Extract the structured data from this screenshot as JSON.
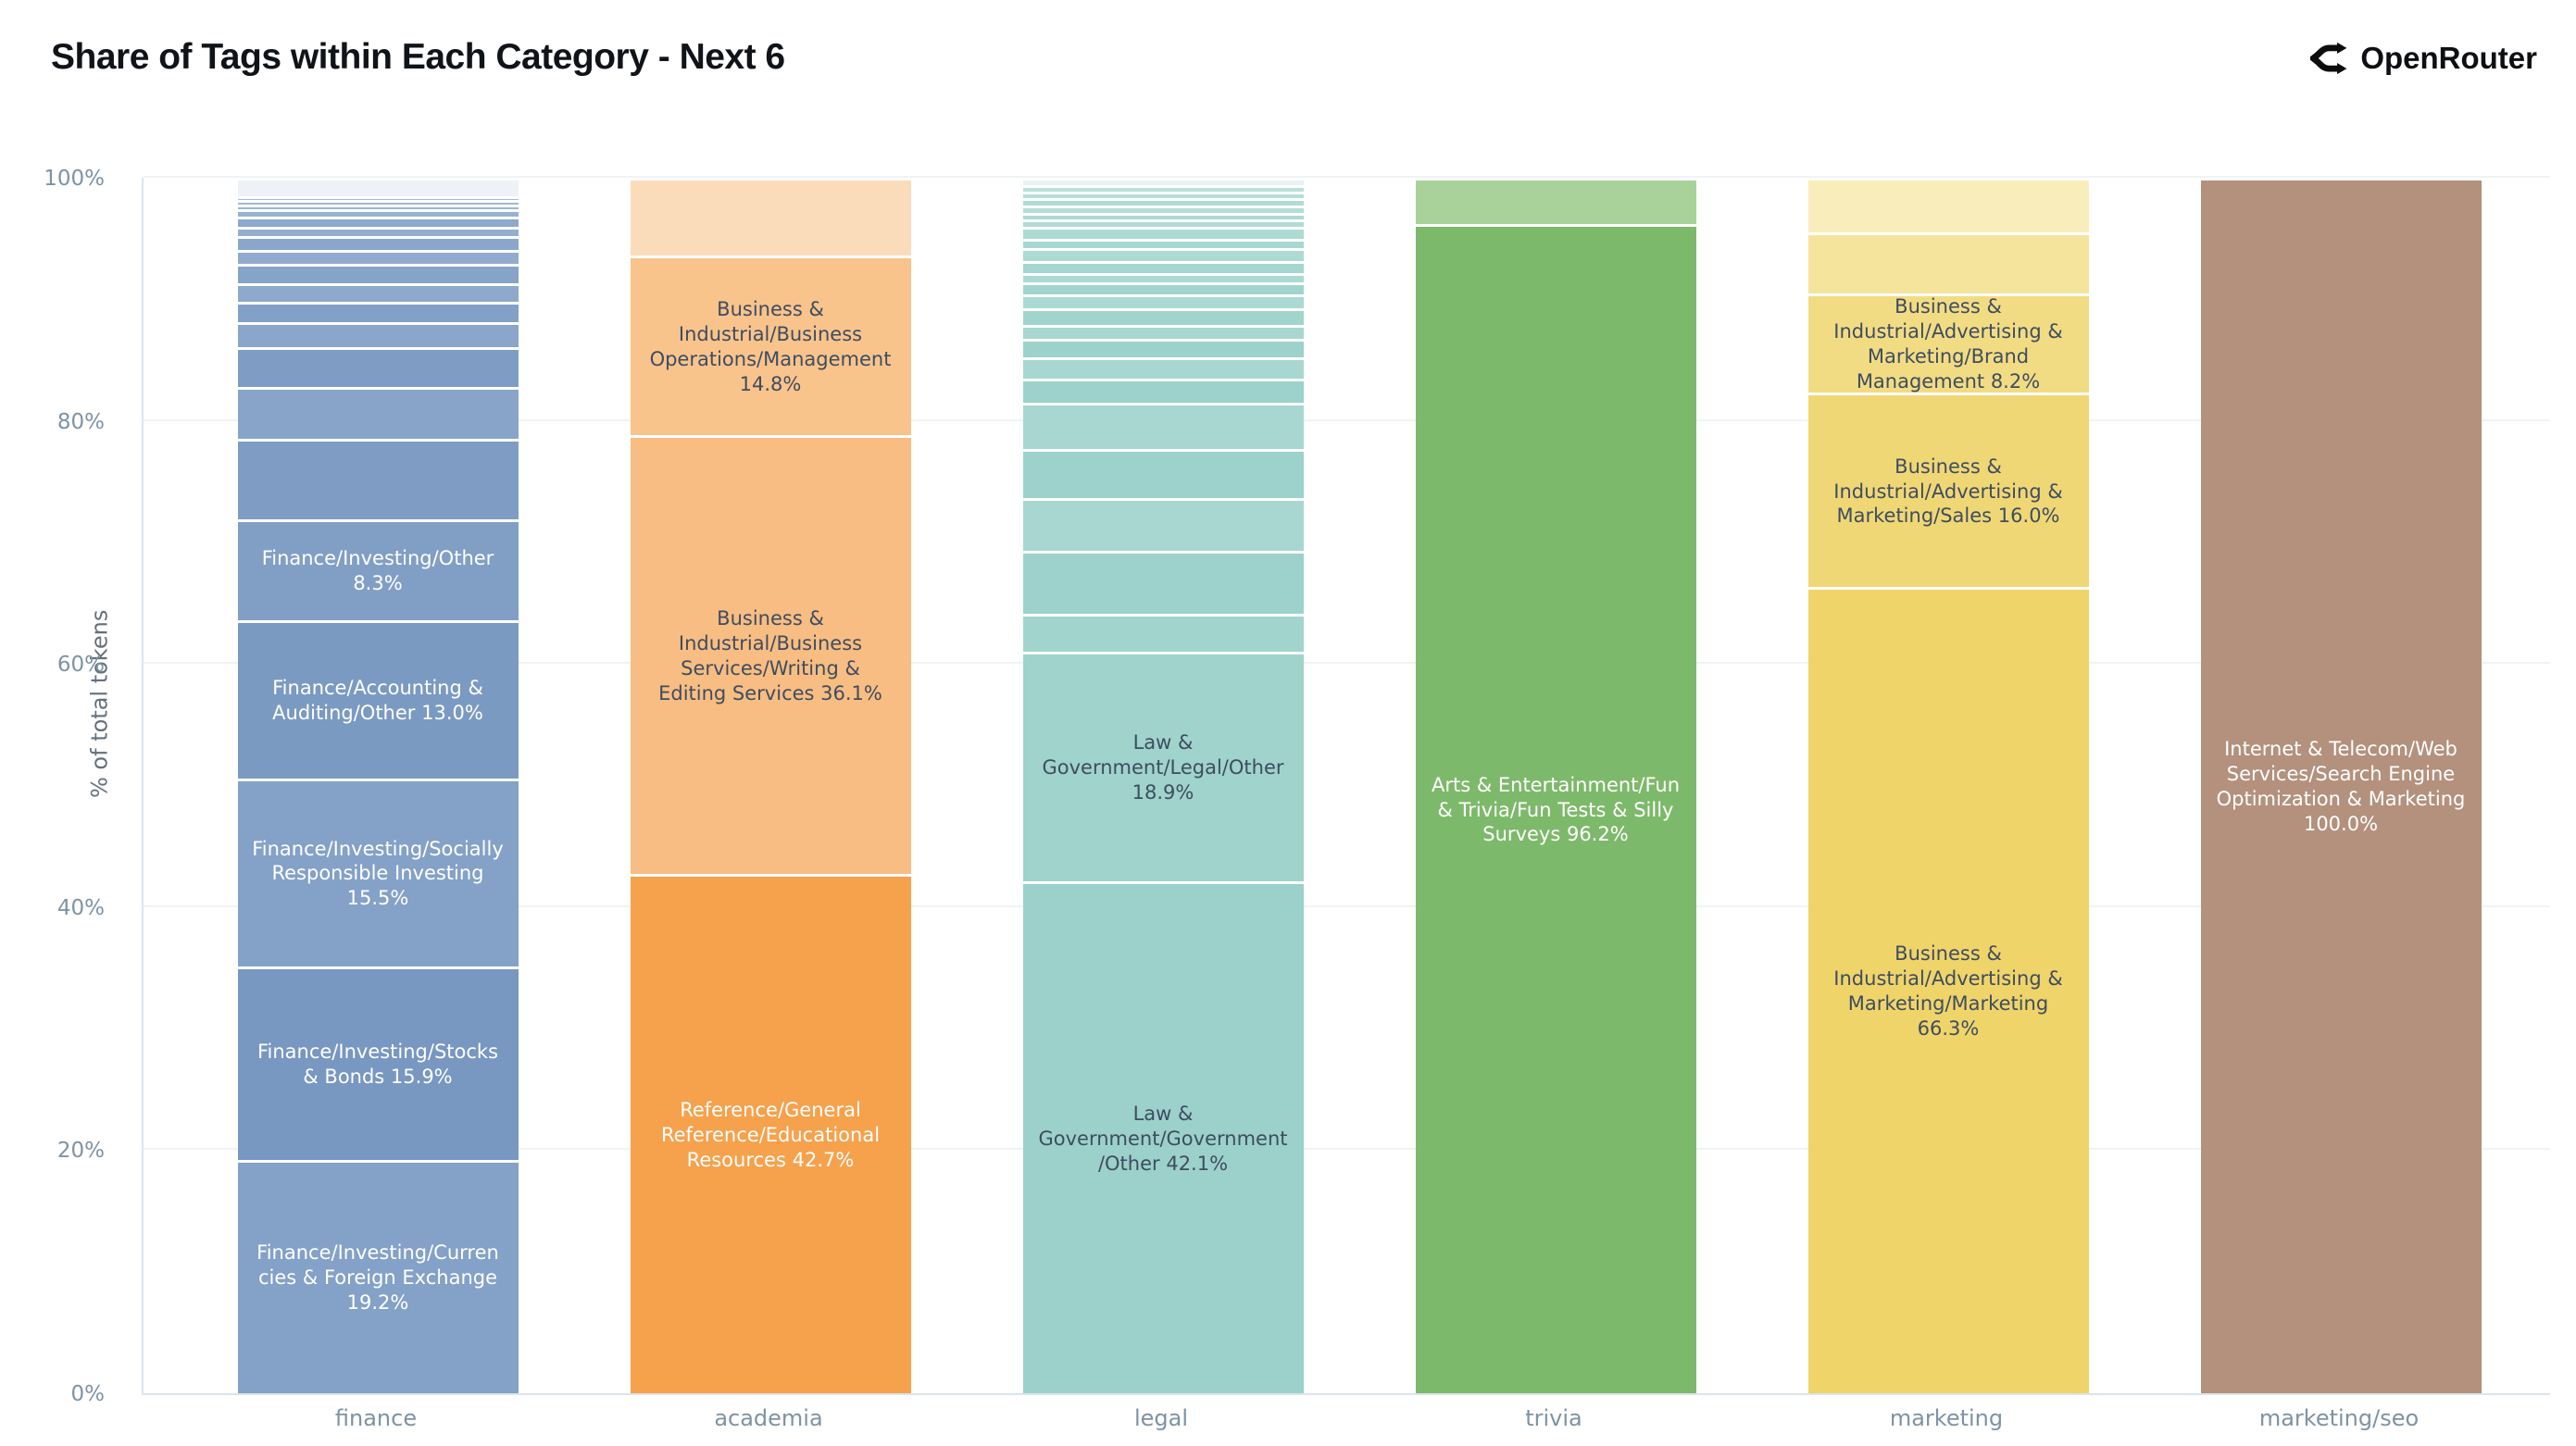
{
  "header": {
    "title": "Share of Tags within Each Category - Next 6",
    "brand": "OpenRouter"
  },
  "colors": {
    "title_text": "#101418",
    "axis_text": "#7e93a4",
    "grid": "#f0f3f5",
    "axis_line": "#dbe5ec",
    "separator": "#ffffff",
    "dark_label": "#3e4d60",
    "light_label": "#ffffff"
  },
  "chart_data": {
    "type": "bar",
    "stacked": true,
    "title": "Share of Tags within Each Category - Next 6",
    "xlabel": "",
    "ylabel": "% of total tokens",
    "ylim": [
      0,
      100
    ],
    "grid": true,
    "legend": false,
    "yticks": [
      {
        "label": "0%",
        "value": 0
      },
      {
        "label": "20%",
        "value": 20
      },
      {
        "label": "40%",
        "value": 40
      },
      {
        "label": "60%",
        "value": 60
      },
      {
        "label": "80%",
        "value": 80
      },
      {
        "label": "100%",
        "value": 100
      }
    ],
    "categories": [
      "finance",
      "academia",
      "legal",
      "trivia",
      "marketing",
      "marketing/seo"
    ],
    "bars": [
      {
        "category": "finance",
        "segments": [
          {
            "label": "Finance/Investing/Currencies & Foreign Exchange 19.2%",
            "value": 19.2,
            "color": "#84a1c7",
            "label_color": "#ffffff"
          },
          {
            "label": "Finance/Investing/Stocks & Bonds 15.9%",
            "value": 15.9,
            "color": "#7897c1",
            "label_color": "#ffffff"
          },
          {
            "label": "Finance/Investing/Socially Responsible Investing 15.5%",
            "value": 15.5,
            "color": "#84a1c7",
            "label_color": "#ffffff"
          },
          {
            "label": "Finance/Accounting & Auditing/Other 13.0%",
            "value": 13.0,
            "color": "#7b9ac2",
            "label_color": "#ffffff"
          },
          {
            "label": "Finance/Investing/Other 8.3%",
            "value": 8.3,
            "color": "#819fc5",
            "label_color": "#ffffff"
          },
          {
            "label": "",
            "value": 6.6,
            "color": "#7f9dc4"
          },
          {
            "label": "",
            "value": 4.3,
            "color": "#88a5c9"
          },
          {
            "label": "",
            "value": 3.3,
            "color": "#7f9dc4"
          },
          {
            "label": "",
            "value": 2.0,
            "color": "#8aa7cb"
          },
          {
            "label": "",
            "value": 1.7,
            "color": "#83a1c6"
          },
          {
            "label": "",
            "value": 1.5,
            "color": "#8da9cc"
          },
          {
            "label": "",
            "value": 1.6,
            "color": "#86a3c8"
          },
          {
            "label": "",
            "value": 1.2,
            "color": "#90abce"
          },
          {
            "label": "",
            "value": 1.1,
            "color": "#8aa7cb"
          },
          {
            "label": "",
            "value": 0.8,
            "color": "#94aed0"
          },
          {
            "label": "",
            "value": 0.8,
            "color": "#8da9cc"
          },
          {
            "label": "",
            "value": 0.6,
            "color": "#98b2d2"
          },
          {
            "label": "",
            "value": 0.4,
            "color": "#9cb5d3"
          },
          {
            "label": "",
            "value": 0.4,
            "color": "#a0b8d5"
          },
          {
            "label": "",
            "value": 0.3,
            "color": "#a5bcd7"
          },
          {
            "label": "",
            "value": 1.5,
            "color": "#eef2f7"
          }
        ]
      },
      {
        "category": "academia",
        "segments": [
          {
            "label": "Reference/General Reference/Educational Resources 42.7%",
            "value": 42.7,
            "color": "#f6a14c",
            "label_color": "#ffffff"
          },
          {
            "label": "Business & Industrial/Business Services/Writing & Editing Services 36.1%",
            "value": 36.1,
            "color": "#f8bd82",
            "label_color": "#3e4d60"
          },
          {
            "label": "Business & Industrial/Business Operations/Management 14.8%",
            "value": 14.8,
            "color": "#f9c38c",
            "label_color": "#3e4d60"
          },
          {
            "label": "",
            "value": 6.4,
            "color": "#fbdcba"
          }
        ]
      },
      {
        "category": "legal",
        "segments": [
          {
            "label": "Law & Government/Government/Other 42.1%",
            "value": 42.1,
            "color": "#9bd1ca",
            "label_color": "#3e4d60"
          },
          {
            "label": "Law & Government/Legal/Other 18.9%",
            "value": 18.9,
            "color": "#9fd3cc",
            "label_color": "#3e4d60"
          },
          {
            "label": "",
            "value": 3.13,
            "color": "#a2d4ce"
          },
          {
            "label": "",
            "value": 5.2,
            "color": "#9cd2cb"
          },
          {
            "label": "",
            "value": 4.35,
            "color": "#a8d7d1"
          },
          {
            "label": "",
            "value": 4.0,
            "color": "#9cd2cb"
          },
          {
            "label": "",
            "value": 3.8,
            "color": "#a8d7d1"
          },
          {
            "label": "",
            "value": 2.0,
            "color": "#9cd2cb"
          },
          {
            "label": "",
            "value": 1.75,
            "color": "#a8d7d1"
          },
          {
            "label": "",
            "value": 1.5,
            "color": "#9cd2cb"
          },
          {
            "label": "",
            "value": 1.15,
            "color": "#a8d7d1"
          },
          {
            "label": "",
            "value": 1.4,
            "color": "#a2d4ce"
          },
          {
            "label": "",
            "value": 1.15,
            "color": "#abd9d3"
          },
          {
            "label": "",
            "value": 1.0,
            "color": "#a2d4ce"
          },
          {
            "label": "",
            "value": 0.76,
            "color": "#abd9d3"
          },
          {
            "label": "",
            "value": 1.0,
            "color": "#a5d6d0"
          },
          {
            "label": "",
            "value": 1.0,
            "color": "#aedad4"
          },
          {
            "label": "",
            "value": 0.76,
            "color": "#a8d7d1"
          },
          {
            "label": "",
            "value": 1.0,
            "color": "#aedad4"
          },
          {
            "label": "",
            "value": 0.6,
            "color": "#b1dbd5"
          },
          {
            "label": "",
            "value": 0.6,
            "color": "#aedad4"
          },
          {
            "label": "",
            "value": 0.6,
            "color": "#b4ddd8"
          },
          {
            "label": "",
            "value": 0.55,
            "color": "#b1dbd5"
          },
          {
            "label": "",
            "value": 0.55,
            "color": "#b7ded9"
          },
          {
            "label": "",
            "value": 0.55,
            "color": "#bae0da"
          },
          {
            "label": "",
            "value": 0.6,
            "color": "#e8f2f1"
          }
        ]
      },
      {
        "category": "trivia",
        "segments": [
          {
            "label": "Arts & Entertainment/Fun & Trivia/Fun Tests & Silly Surveys 96.2%",
            "value": 96.2,
            "color": "#7db96a",
            "label_color": "#ffffff"
          },
          {
            "label": "",
            "value": 3.8,
            "color": "#a9d29a"
          }
        ]
      },
      {
        "category": "marketing",
        "segments": [
          {
            "label": "Business & Industrial/Advertising & Marketing/Marketing 66.3%",
            "value": 66.3,
            "color": "#efd46a",
            "label_color": "#3e4d60"
          },
          {
            "label": "Business & Industrial/Advertising & Marketing/Sales 16.0%",
            "value": 16.0,
            "color": "#f0d775",
            "label_color": "#3e4d60"
          },
          {
            "label": "Business & Industrial/Advertising & Marketing/Brand Management 8.2%",
            "value": 8.2,
            "color": "#f2dc83",
            "label_color": "#3e4d60"
          },
          {
            "label": "",
            "value": 5.0,
            "color": "#f5e49c"
          },
          {
            "label": "",
            "value": 4.5,
            "color": "#f9eebb"
          }
        ]
      },
      {
        "category": "marketing/seo",
        "segments": [
          {
            "label": "Internet & Telecom/Web Services/Search Engine Optimization & Marketing 100.0%",
            "value": 100.0,
            "color": "#b3917d",
            "label_color": "#ffffff"
          }
        ]
      }
    ]
  }
}
